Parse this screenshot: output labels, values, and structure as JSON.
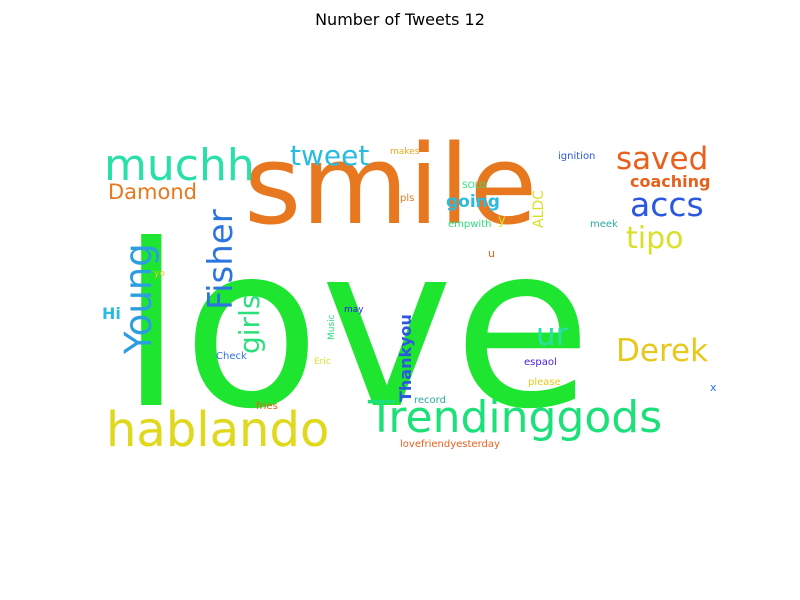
{
  "title": "Number of Tweets 12",
  "words": [
    {
      "text": "love",
      "color": "#1ee630"
    },
    {
      "text": "smile",
      "color": "#e87820"
    },
    {
      "text": "muchh",
      "color": "#29e0a8"
    },
    {
      "text": "tweet",
      "color": "#2bbae0"
    },
    {
      "text": "saved",
      "color": "#e8601c"
    },
    {
      "text": "accs",
      "color": "#2c58e0"
    },
    {
      "text": "tipo",
      "color": "#d8e02a"
    },
    {
      "text": "Damond",
      "color": "#e87820"
    },
    {
      "text": "coaching",
      "color": "#e8601c"
    },
    {
      "text": "going",
      "color": "#2bbae0"
    },
    {
      "text": "Fisher",
      "color": "#2c74e0"
    },
    {
      "text": "Young",
      "color": "#2c9ee0"
    },
    {
      "text": "girls",
      "color": "#2be07a"
    },
    {
      "text": "ur",
      "color": "#29e0a8"
    },
    {
      "text": "Derek",
      "color": "#e8c81c"
    },
    {
      "text": "Hi",
      "color": "#2bbae0"
    },
    {
      "text": "hablando",
      "color": "#e0d81c"
    },
    {
      "text": "Trendinggods",
      "color": "#1ee07a"
    },
    {
      "text": "Thankyou",
      "color": "#2c58e0"
    },
    {
      "text": "makes",
      "color": "#e8a81c"
    },
    {
      "text": "ignition",
      "color": "#2c58e0"
    },
    {
      "text": "SOLO",
      "color": "#2be07a"
    },
    {
      "text": "pls",
      "color": "#e87820"
    },
    {
      "text": "empwith",
      "color": "#2be07a"
    },
    {
      "text": "ALDC",
      "color": "#d8e02a"
    },
    {
      "text": "y",
      "color": "#d8e02a"
    },
    {
      "text": "meek",
      "color": "#2ca8a0"
    },
    {
      "text": "u",
      "color": "#e8601c"
    },
    {
      "text": "yo",
      "color": "#e8c81c"
    },
    {
      "text": "may",
      "color": "#2c1ee0"
    },
    {
      "text": "Music",
      "color": "#2be07a"
    },
    {
      "text": "Check",
      "color": "#2c74e0"
    },
    {
      "text": "Eric",
      "color": "#d8e02a"
    },
    {
      "text": "espaol",
      "color": "#4a1ee0"
    },
    {
      "text": "please",
      "color": "#e8c81c"
    },
    {
      "text": "x",
      "color": "#2c74e0"
    },
    {
      "text": "record",
      "color": "#2ca8a0"
    },
    {
      "text": "fries",
      "color": "#e8601c"
    },
    {
      "text": "lovefriendyesterday",
      "color": "#e8601c"
    }
  ]
}
